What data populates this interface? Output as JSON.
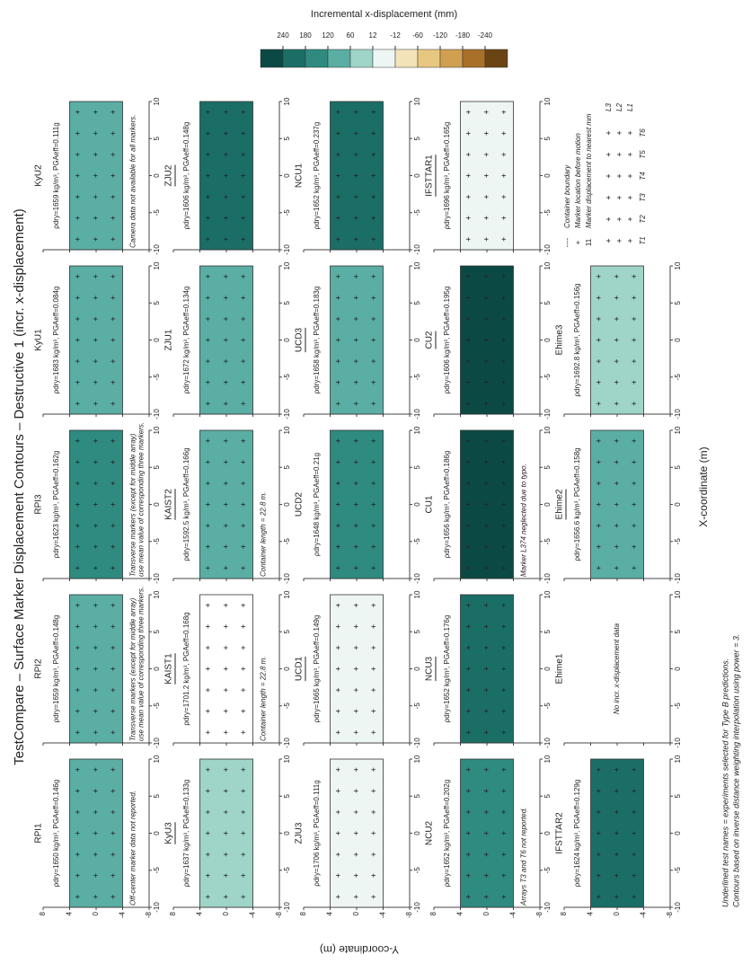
{
  "chart_data": {
    "type": "contour",
    "title": "TestCompare – Surface Marker Displacement Contours – Destructive 1 (incr. x-displacement)",
    "xlabel": "X-coordinate (m)",
    "ylabel": "Y-coordinate (m)",
    "xlim": [
      -10,
      10
    ],
    "ylim": [
      -8,
      8
    ],
    "xticks": [
      -10,
      -5,
      0,
      5,
      10
    ],
    "yticks": [
      -8,
      -4,
      0,
      4,
      8
    ],
    "colorbar": {
      "label": "Incremental x-displacement (mm)",
      "levels": [
        240,
        180,
        120,
        60,
        12,
        -12,
        -60,
        -120,
        -180,
        -240
      ],
      "colors": [
        "#0b4a44",
        "#1a6e66",
        "#2f8a80",
        "#5aaea3",
        "#9fd4c8",
        "#eef6f3",
        "#f3e3b8",
        "#e8c880",
        "#d0a050",
        "#a87028",
        "#6b4414"
      ]
    },
    "panels": [
      {
        "name": "RPI1",
        "subtitle": "ρdry=1650 kg/m³, PGAeff=0.146g",
        "color": "#5aaea3",
        "note": [
          "Off-center marker data not reported."
        ]
      },
      {
        "name": "RPI2",
        "subtitle": "ρdry=1659 kg/m³, PGAeff=0.148g",
        "color": "#5aaea3",
        "note": [
          "Transverse markers (except for middle array)",
          "use mean value of corresponding three markers."
        ]
      },
      {
        "name": "RPI3",
        "subtitle": "ρdry=1623 kg/m³, PGAeff=0.162g",
        "color": "#2f8a80",
        "note": [
          "Transverse markers (except for middle array)",
          "use mean value of corresponding three markers."
        ]
      },
      {
        "name": "KyU1",
        "subtitle": "ρdry=1683 kg/m³, PGAeff=0.084g",
        "color": "#5aaea3"
      },
      {
        "name": "KyU2",
        "subtitle": "ρdry=1659 kg/m³, PGAeff=0.111g",
        "color": "#5aaea3",
        "note": [
          "Camera data not available for all markers."
        ]
      },
      {
        "name": "KyU3",
        "subtitle": "ρdry=1637 kg/m³, PGAeff=0.133g",
        "color": "#9fd4c8",
        "underline": true
      },
      {
        "name": "KAIST1",
        "subtitle": "ρdry=1701.2 kg/m³, PGAeff=0.168g",
        "color": "#ffffff",
        "underline": true,
        "note": [
          "Container length = 22.8 m."
        ]
      },
      {
        "name": "KAIST2",
        "subtitle": "ρdry=1592.5 kg/m³, PGAeff=0.166g",
        "color": "#5aaea3",
        "underline": true,
        "note": [
          "Container length = 22.8 m."
        ]
      },
      {
        "name": "ZJU1",
        "subtitle": "ρdry=1672 kg/m³, PGAeff=0.134g",
        "color": "#5aaea3"
      },
      {
        "name": "ZJU2",
        "subtitle": "ρdry=1606 kg/m³, PGAeff=0.148g",
        "color": "#1a6e66",
        "underline": true
      },
      {
        "name": "ZJU3",
        "subtitle": "ρdry=1706 kg/m³, PGAeff=0.111g",
        "color": "#eef6f3"
      },
      {
        "name": "UCD1",
        "subtitle": "ρdry=1665 kg/m³, PGAeff=0.149g",
        "color": "#eef6f3",
        "underline": true
      },
      {
        "name": "UCD2",
        "subtitle": "ρdry=1648 kg/m³, PGAeff=0.21g",
        "color": "#2f8a80"
      },
      {
        "name": "UCD3",
        "subtitle": "ρdry=1658 kg/m³, PGAeff=0.183g",
        "color": "#5aaea3",
        "underline": true
      },
      {
        "name": "NCU1",
        "subtitle": "ρdry=1652 kg/m³, PGAeff=0.237g",
        "color": "#1a6e66"
      },
      {
        "name": "NCU2",
        "subtitle": "ρdry=1652 kg/m³, PGAeff=0.202g",
        "color": "#2f8a80",
        "note": [
          "Arrays T3 and T6 not reported."
        ]
      },
      {
        "name": "NCU3",
        "subtitle": "ρdry=1652 kg/m³, PGAeff=0.176g",
        "color": "#1a6e66",
        "underline": true
      },
      {
        "name": "CU1",
        "subtitle": "ρdry=1656 kg/m³, PGAeff=0.186g",
        "color": "#0b4a44",
        "note": [
          "Marker L374 neglected due to typo."
        ]
      },
      {
        "name": "CU2",
        "subtitle": "ρdry=1606 kg/m³, PGAeff=0.195g",
        "color": "#0b4a44",
        "underline": true
      },
      {
        "name": "IFSTTAR1",
        "subtitle": "ρdry=1696 kg/m³, PGAeff=0.165g",
        "color": "#eef6f3",
        "underline": true
      },
      {
        "name": "IFSTTAR2",
        "subtitle": "ρdry=1624 kg/m³, PGAeff=0.129g",
        "color": "#1a6e66"
      },
      {
        "name": "Ehime1",
        "note": [
          "No incr. x-displacement data"
        ]
      },
      {
        "name": "Ehime2",
        "subtitle": "ρdry=1656.6 kg/m³, PGAeff=0.158g",
        "color": "#5aaea3",
        "underline": true
      },
      {
        "name": "Ehime3",
        "subtitle": "ρdry=1692.8 kg/m³, PGAeff=0.156g",
        "color": "#9fd4c8"
      }
    ],
    "legend": {
      "items": [
        {
          "symbol": "----",
          "label": "Container boundary"
        },
        {
          "symbol": "+",
          "label": "Marker location before motion"
        },
        {
          "symbol": "11",
          "label": "Marker displacement to nearest mm"
        }
      ],
      "rows": [
        "L3",
        "L2",
        "L1"
      ],
      "cols": [
        "T1",
        "T2",
        "T3",
        "T4",
        "T5",
        "T6"
      ]
    },
    "footnotes": [
      "Underlined test names = experiments selected for Type B predictions.",
      "Contours based on inverse distance weighting interpolation using power = 3."
    ]
  }
}
